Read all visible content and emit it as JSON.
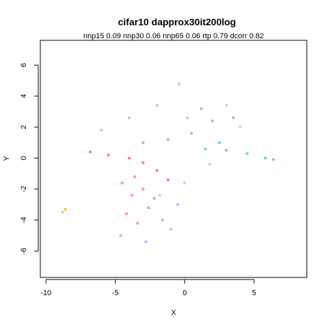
{
  "chart_data": {
    "type": "scatter",
    "title": "cifar10 dapprox30it200log",
    "subtitle": "nnp15 0.09 nnp30 0.06 nnp65 0.06 rtp 0.79 dcorr 0.82",
    "xlabel": "X",
    "ylabel": "Y",
    "xlim": [
      -10.4,
      8.8
    ],
    "ylim": [
      -7.7,
      7.6
    ],
    "x_ticks": [
      -10,
      -5,
      0,
      5
    ],
    "y_ticks": [
      -6,
      -4,
      -2,
      0,
      2,
      4,
      6
    ],
    "x_tick_labels": [
      "-10",
      "-5",
      "0",
      "5"
    ],
    "y_tick_labels": [
      "-6",
      "-4",
      "-2",
      "0",
      "2",
      "4",
      "6"
    ],
    "grid": false,
    "legend": "none",
    "series": [
      {
        "color": "#ff30c8",
        "values": [
          [
            -3.8,
            -2.4
          ],
          [
            -3.0,
            -2.0
          ],
          [
            -4.5,
            -1.6
          ],
          [
            -2.6,
            -3.2
          ],
          [
            -3.4,
            -4.2
          ],
          [
            -4.2,
            -3.6
          ],
          [
            -2.2,
            -2.6
          ],
          [
            -3.6,
            -1.2
          ]
        ]
      },
      {
        "color": "#e03010",
        "values": [
          [
            -6.8,
            0.4
          ],
          [
            -5.5,
            0.2
          ],
          [
            -4.0,
            0.0
          ],
          [
            -3.0,
            -0.3
          ],
          [
            -2.0,
            -0.8
          ],
          [
            -1.2,
            -1.4
          ]
        ]
      },
      {
        "color": "#ff8c00",
        "values": [
          [
            -8.8,
            -3.5
          ],
          [
            -8.6,
            -3.3
          ]
        ]
      },
      {
        "color": "#30c040",
        "values": [
          [
            -1.2,
            1.2
          ],
          [
            0.5,
            1.6
          ],
          [
            2.0,
            2.4
          ],
          [
            3.5,
            2.6
          ],
          [
            -3.0,
            1.0
          ],
          [
            1.2,
            3.2
          ]
        ]
      },
      {
        "color": "#10b0a0",
        "values": [
          [
            1.5,
            0.6
          ],
          [
            3.0,
            0.5
          ],
          [
            4.5,
            0.3
          ],
          [
            5.8,
            0.0
          ],
          [
            6.4,
            -0.1
          ],
          [
            2.5,
            1.0
          ]
        ]
      },
      {
        "color": "#8ca0ff",
        "values": [
          [
            -4.0,
            2.6
          ],
          [
            -2.0,
            3.4
          ],
          [
            -0.4,
            4.8
          ],
          [
            -6.0,
            1.8
          ],
          [
            0.2,
            2.6
          ],
          [
            -1.0,
            -4.6
          ]
        ]
      },
      {
        "color": "#c8c040",
        "values": [
          [
            3.0,
            3.4
          ],
          [
            4.0,
            2.0
          ],
          [
            1.8,
            -0.4
          ],
          [
            0.0,
            -1.6
          ],
          [
            -1.8,
            -2.4
          ]
        ]
      },
      {
        "color": "#c060ff",
        "values": [
          [
            -2.8,
            -5.4
          ],
          [
            -1.6,
            -4.0
          ],
          [
            -0.5,
            -3.0
          ],
          [
            -4.6,
            -5.0
          ]
        ]
      }
    ]
  }
}
